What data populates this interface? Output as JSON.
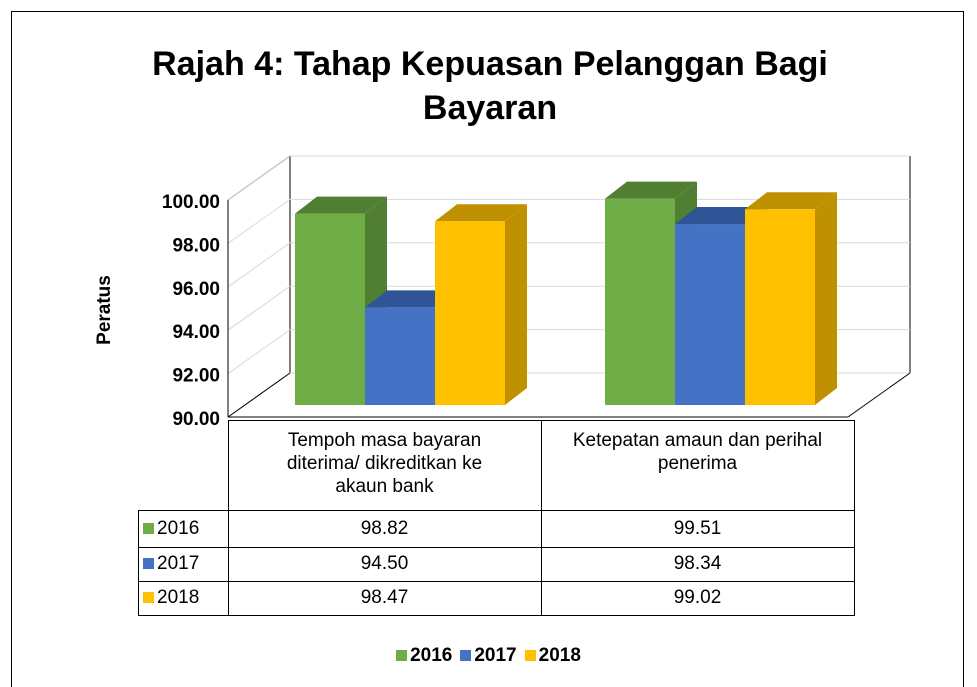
{
  "chart_data": {
    "type": "bar3d",
    "title": "Rajah 4: Tahap Kepuasan Pelanggan Bagi Bayaran",
    "y_label": "Peratus",
    "categories": [
      "Tempoh masa bayaran diterima/ dikreditkan ke akaun bank",
      "Ketepatan amaun dan perihal penerima"
    ],
    "series": [
      {
        "name": "2016",
        "color": "#70ad47",
        "side_color": "#507e32",
        "values": [
          98.82,
          99.51
        ],
        "value_labels": [
          "98.82",
          "99.51"
        ]
      },
      {
        "name": "2017",
        "color": "#4472c4",
        "side_color": "#2f5597",
        "values": [
          94.5,
          98.34
        ],
        "value_labels": [
          "94.50",
          "98.34"
        ]
      },
      {
        "name": "2018",
        "color": "#ffc000",
        "side_color": "#bf9000",
        "values": [
          98.47,
          99.02
        ],
        "value_labels": [
          "98.47",
          "99.02"
        ]
      }
    ],
    "ylim": [
      90,
      100
    ],
    "yticks": [
      {
        "value": 90,
        "label": "90.00"
      },
      {
        "value": 92,
        "label": "92.00"
      },
      {
        "value": 94,
        "label": "94.00"
      },
      {
        "value": 96,
        "label": "96.00"
      },
      {
        "value": 98,
        "label": "98.00"
      },
      {
        "value": 100,
        "label": "100.00"
      }
    ],
    "grid": true,
    "legend": "bottom",
    "data_table": true
  }
}
